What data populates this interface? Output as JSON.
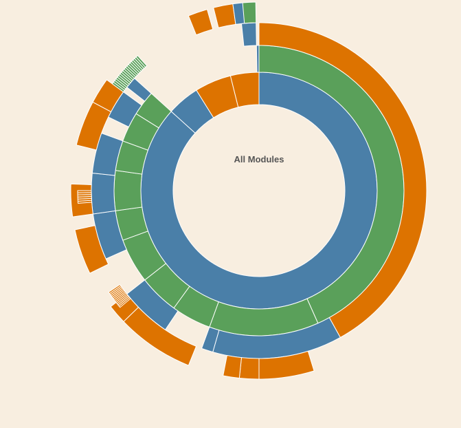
{
  "chart_data": {
    "type": "sunburst",
    "title": "",
    "center_label": "All Modules",
    "colors": {
      "background": "#f8eee0",
      "blue": "#4a7fa8",
      "green": "#5aa05a",
      "orange": "#dd7300",
      "separator": "#ffffff"
    },
    "depth_colors": [
      "blue",
      "blue",
      "green",
      "blue",
      "orange"
    ],
    "segments": [
      {
        "depth": 1,
        "start": 0,
        "end": 312,
        "color": "blue"
      },
      {
        "depth": 1,
        "start": 312,
        "end": 328,
        "color": "blue"
      },
      {
        "depth": 1,
        "start": 328,
        "end": 346,
        "color": "orange"
      },
      {
        "depth": 1,
        "start": 346,
        "end": 360,
        "color": "orange"
      },
      {
        "depth": 2,
        "start": 0,
        "end": 156,
        "color": "green"
      },
      {
        "depth": 2,
        "start": 156,
        "end": 200,
        "color": "green"
      },
      {
        "depth": 2,
        "start": 200,
        "end": 216,
        "color": "green"
      },
      {
        "depth": 2,
        "start": 216,
        "end": 232,
        "color": "green"
      },
      {
        "depth": 2,
        "start": 232,
        "end": 250,
        "color": "green"
      },
      {
        "depth": 2,
        "start": 250,
        "end": 262,
        "color": "green"
      },
      {
        "depth": 2,
        "start": 262,
        "end": 278,
        "color": "green"
      },
      {
        "depth": 2,
        "start": 278,
        "end": 290,
        "color": "green"
      },
      {
        "depth": 2,
        "start": 290,
        "end": 302,
        "color": "green"
      },
      {
        "depth": 2,
        "start": 302,
        "end": 312,
        "color": "green"
      },
      {
        "depth": 2,
        "start": 359,
        "end": 360,
        "color": "blue"
      },
      {
        "depth": 3,
        "start": 0,
        "end": 151,
        "color": "orange"
      },
      {
        "depth": 3,
        "start": 151,
        "end": 196,
        "color": "blue"
      },
      {
        "depth": 3,
        "start": 196,
        "end": 200,
        "color": "blue"
      },
      {
        "depth": 3,
        "start": 214,
        "end": 232,
        "color": "blue"
      },
      {
        "depth": 3,
        "start": 246,
        "end": 262,
        "color": "blue"
      },
      {
        "depth": 3,
        "start": 262,
        "end": 276,
        "color": "blue"
      },
      {
        "depth": 3,
        "start": 276,
        "end": 290,
        "color": "blue"
      },
      {
        "depth": 3,
        "start": 296,
        "end": 306,
        "color": "blue"
      },
      {
        "depth": 3,
        "start": 308,
        "end": 312,
        "color": "blue"
      },
      {
        "depth": 3,
        "start": 354,
        "end": 359,
        "color": "blue"
      },
      {
        "depth": 4,
        "start": 163,
        "end": 180,
        "color": "orange"
      },
      {
        "depth": 4,
        "start": 180,
        "end": 186,
        "color": "orange"
      },
      {
        "depth": 4,
        "start": 186,
        "end": 191,
        "color": "orange"
      },
      {
        "depth": 4,
        "start": 202,
        "end": 226,
        "color": "orange"
      },
      {
        "depth": 4,
        "start": 226,
        "end": 232,
        "color": "orange"
      },
      {
        "depth": 4,
        "start": 244,
        "end": 258,
        "color": "orange"
      },
      {
        "depth": 4,
        "start": 262,
        "end": 272,
        "color": "orange"
      },
      {
        "depth": 4,
        "start": 284,
        "end": 298,
        "color": "orange"
      },
      {
        "depth": 4,
        "start": 298,
        "end": 306,
        "color": "orange"
      },
      {
        "depth": 4,
        "start": 338,
        "end": 344,
        "color": "orange"
      },
      {
        "depth": 4,
        "start": 346,
        "end": 352,
        "color": "orange"
      },
      {
        "depth": 4,
        "start": 352,
        "end": 358,
        "color": "blue"
      },
      {
        "depth": 4,
        "start": 355,
        "end": 359,
        "color": "green"
      }
    ]
  }
}
